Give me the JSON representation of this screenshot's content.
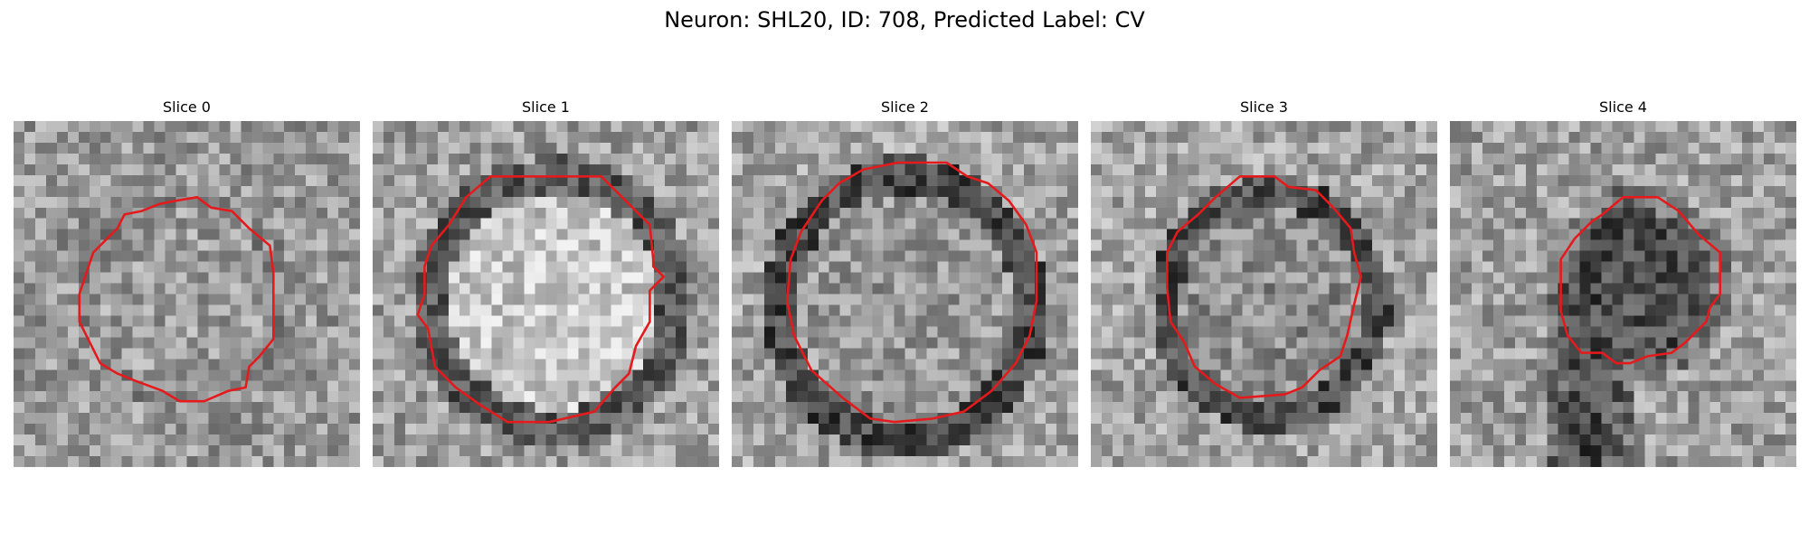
{
  "figure": {
    "title": "Neuron: SHL20, ID: 708, Predicted Label: CV",
    "contour_color": "#e41a1c",
    "colormap": "gray"
  },
  "panels": [
    {
      "title": "Slice 0"
    },
    {
      "title": "Slice 1"
    },
    {
      "title": "Slice 2"
    },
    {
      "title": "Slice 3"
    },
    {
      "title": "Slice 4"
    }
  ]
}
